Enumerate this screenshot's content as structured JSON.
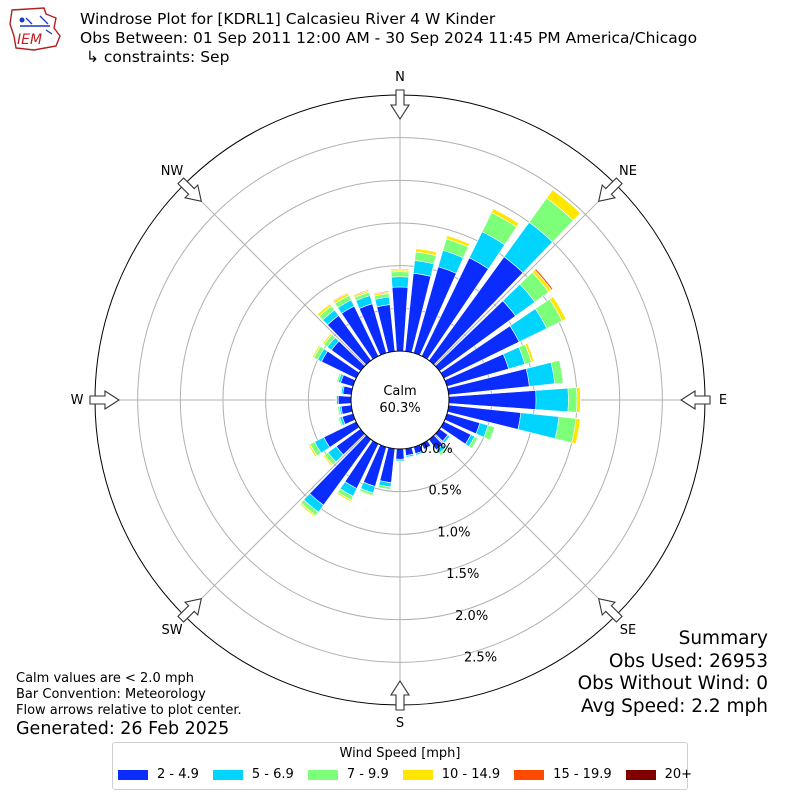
{
  "header": {
    "logo_text": "IEM",
    "title": "Windrose Plot for [KDRL1] Calcasieu River 4 W Kinder",
    "obs_between": "Obs Between: 01 Sep 2011 12:00 AM - 30 Sep 2024 11:45 PM America/Chicago",
    "constraints": "↳ constraints: Sep"
  },
  "compass": {
    "N": "N",
    "NE": "NE",
    "E": "E",
    "SE": "SE",
    "S": "S",
    "SW": "SW",
    "W": "W",
    "NW": "NW"
  },
  "calm": {
    "label": "Calm",
    "value": "60.3%"
  },
  "notes": {
    "calm_def": "Calm values are < 2.0 mph",
    "convention": "Bar Convention: Meteorology",
    "flow": "Flow arrows relative to plot center."
  },
  "generated": "Generated: 26 Feb 2025",
  "summary": {
    "title": "Summary",
    "obs_used": "Obs Used: 26953",
    "obs_without_wind": "Obs Without Wind: 0",
    "avg_speed": "Avg Speed: 2.2 mph"
  },
  "legend": {
    "title": "Wind Speed [mph]",
    "items": [
      {
        "label": "2 - 4.9",
        "color": "#0a2cff"
      },
      {
        "label": "5 - 6.9",
        "color": "#00d4ff"
      },
      {
        "label": "7 - 9.9",
        "color": "#7dff7a"
      },
      {
        "label": "10 - 14.9",
        "color": "#ffe600"
      },
      {
        "label": "15 - 19.9",
        "color": "#ff4a00"
      },
      {
        "label": "20+",
        "color": "#800000"
      }
    ]
  },
  "chart_data": {
    "type": "windrose",
    "r_ticks": [
      "0.0%",
      "0.5%",
      "1.0%",
      "1.5%",
      "2.0%",
      "2.5%"
    ],
    "r_max_percent": 3.0,
    "bin_width_deg": 10,
    "bins": [
      "2 - 4.9",
      "5 - 6.9",
      "7 - 9.9",
      "10 - 14.9",
      "15 - 19.9",
      "20+"
    ],
    "colors": [
      "#0a2cff",
      "#00d4ff",
      "#7dff7a",
      "#ffe600",
      "#ff4a00",
      "#800000"
    ],
    "directions": [
      {
        "deg": 0,
        "values": [
          0.75,
          0.12,
          0.06,
          0.02,
          0.01,
          0.0
        ]
      },
      {
        "deg": 10,
        "values": [
          0.92,
          0.15,
          0.1,
          0.04,
          0.0,
          0.0
        ]
      },
      {
        "deg": 20,
        "values": [
          1.05,
          0.2,
          0.14,
          0.04,
          0.0,
          0.0
        ]
      },
      {
        "deg": 30,
        "values": [
          1.28,
          0.34,
          0.25,
          0.05,
          0.0,
          0.0
        ]
      },
      {
        "deg": 40,
        "values": [
          1.5,
          0.5,
          0.35,
          0.12,
          0.0,
          0.0
        ]
      },
      {
        "deg": 50,
        "values": [
          1.1,
          0.28,
          0.2,
          0.04,
          0.02,
          0.0
        ]
      },
      {
        "deg": 60,
        "values": [
          0.98,
          0.36,
          0.2,
          0.05,
          0.0,
          0.0
        ]
      },
      {
        "deg": 70,
        "values": [
          0.75,
          0.2,
          0.08,
          0.03,
          0.0,
          0.0
        ]
      },
      {
        "deg": 80,
        "values": [
          0.95,
          0.3,
          0.1,
          0.0,
          0.0,
          0.0
        ]
      },
      {
        "deg": 90,
        "values": [
          1.02,
          0.38,
          0.1,
          0.04,
          0.0,
          0.0
        ]
      },
      {
        "deg": 100,
        "values": [
          0.85,
          0.45,
          0.2,
          0.05,
          0.0,
          0.0
        ]
      },
      {
        "deg": 110,
        "values": [
          0.4,
          0.1,
          0.08,
          0.0,
          0.0,
          0.0
        ]
      },
      {
        "deg": 120,
        "values": [
          0.35,
          0.05,
          0.04,
          0.0,
          0.0,
          0.0
        ]
      },
      {
        "deg": 130,
        "values": [
          0.12,
          0.03,
          0.01,
          0.0,
          0.0,
          0.0
        ]
      },
      {
        "deg": 140,
        "values": [
          0.15,
          0.05,
          0.03,
          0.0,
          0.0,
          0.0
        ]
      },
      {
        "deg": 150,
        "values": [
          0.07,
          0.01,
          0.01,
          0.0,
          0.0,
          0.0
        ]
      },
      {
        "deg": 160,
        "values": [
          0.08,
          0.02,
          0.0,
          0.0,
          0.0,
          0.0
        ]
      },
      {
        "deg": 170,
        "values": [
          0.08,
          0.02,
          0.0,
          0.0,
          0.0,
          0.0
        ]
      },
      {
        "deg": 180,
        "values": [
          0.12,
          0.02,
          0.0,
          0.0,
          0.0,
          0.0
        ]
      },
      {
        "deg": 190,
        "values": [
          0.4,
          0.05,
          0.03,
          0.0,
          0.0,
          0.0
        ]
      },
      {
        "deg": 200,
        "values": [
          0.48,
          0.08,
          0.03,
          0.01,
          0.0,
          0.0
        ]
      },
      {
        "deg": 210,
        "values": [
          0.58,
          0.1,
          0.05,
          0.02,
          0.0,
          0.0
        ]
      },
      {
        "deg": 220,
        "values": [
          0.95,
          0.1,
          0.05,
          0.02,
          0.0,
          0.0
        ]
      },
      {
        "deg": 230,
        "values": [
          0.35,
          0.12,
          0.05,
          0.02,
          0.0,
          0.0
        ]
      },
      {
        "deg": 240,
        "values": [
          0.42,
          0.12,
          0.06,
          0.02,
          0.0,
          0.0
        ]
      },
      {
        "deg": 250,
        "values": [
          0.13,
          0.03,
          0.02,
          0.0,
          0.0,
          0.0
        ]
      },
      {
        "deg": 260,
        "values": [
          0.12,
          0.02,
          0.02,
          0.0,
          0.0,
          0.0
        ]
      },
      {
        "deg": 270,
        "values": [
          0.15,
          0.02,
          0.01,
          0.0,
          0.0,
          0.0
        ]
      },
      {
        "deg": 280,
        "values": [
          0.1,
          0.02,
          0.01,
          0.0,
          0.0,
          0.0
        ]
      },
      {
        "deg": 290,
        "values": [
          0.15,
          0.03,
          0.02,
          0.0,
          0.0,
          0.0
        ]
      },
      {
        "deg": 300,
        "values": [
          0.45,
          0.05,
          0.05,
          0.02,
          0.0,
          0.0
        ]
      },
      {
        "deg": 310,
        "values": [
          0.42,
          0.06,
          0.05,
          0.02,
          0.0,
          0.0
        ]
      },
      {
        "deg": 320,
        "values": [
          0.65,
          0.08,
          0.06,
          0.03,
          0.0,
          0.0
        ]
      },
      {
        "deg": 330,
        "values": [
          0.65,
          0.08,
          0.06,
          0.03,
          0.01,
          0.0
        ]
      },
      {
        "deg": 340,
        "values": [
          0.6,
          0.1,
          0.04,
          0.02,
          0.01,
          0.0
        ]
      },
      {
        "deg": 350,
        "values": [
          0.55,
          0.09,
          0.04,
          0.02,
          0.01,
          0.0
        ]
      }
    ]
  }
}
